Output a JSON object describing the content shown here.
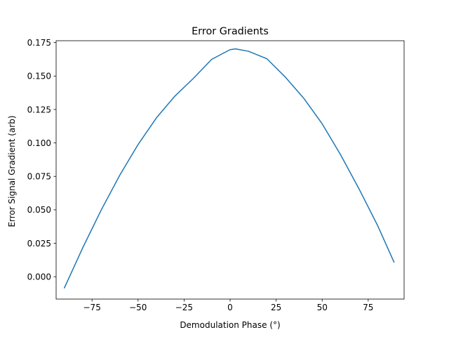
{
  "chart_data": {
    "type": "line",
    "title": "Error Gradients",
    "xlabel": "Demodulation Phase (°)",
    "ylabel": "Error Signal Gradient (arb)",
    "xlim": [
      -94.5,
      94.5
    ],
    "ylim": [
      -0.0167,
      0.1764
    ],
    "grid": false,
    "x_ticks": [
      -75,
      -50,
      -25,
      0,
      25,
      50,
      75
    ],
    "x_tick_labels": [
      "−75",
      "−50",
      "−25",
      "0",
      "25",
      "50",
      "75"
    ],
    "y_ticks": [
      0.0,
      0.025,
      0.05,
      0.075,
      0.1,
      0.125,
      0.15,
      0.175
    ],
    "y_tick_labels": [
      "0.000",
      "0.025",
      "0.050",
      "0.075",
      "0.100",
      "0.125",
      "0.150",
      "0.175"
    ],
    "series": [
      {
        "color": "#1f77b4",
        "x": [
          -90,
          -80,
          -70,
          -60,
          -50,
          -40,
          -30,
          -20,
          -10,
          0,
          3,
          10,
          20,
          30,
          40,
          50,
          60,
          70,
          80,
          89
        ],
        "y": [
          -0.0083,
          0.0218,
          0.0499,
          0.0757,
          0.0988,
          0.1188,
          0.135,
          0.1482,
          0.1625,
          0.1697,
          0.1703,
          0.1685,
          0.1629,
          0.1492,
          0.1334,
          0.1143,
          0.0912,
          0.0657,
          0.0386,
          0.011
        ]
      }
    ]
  }
}
